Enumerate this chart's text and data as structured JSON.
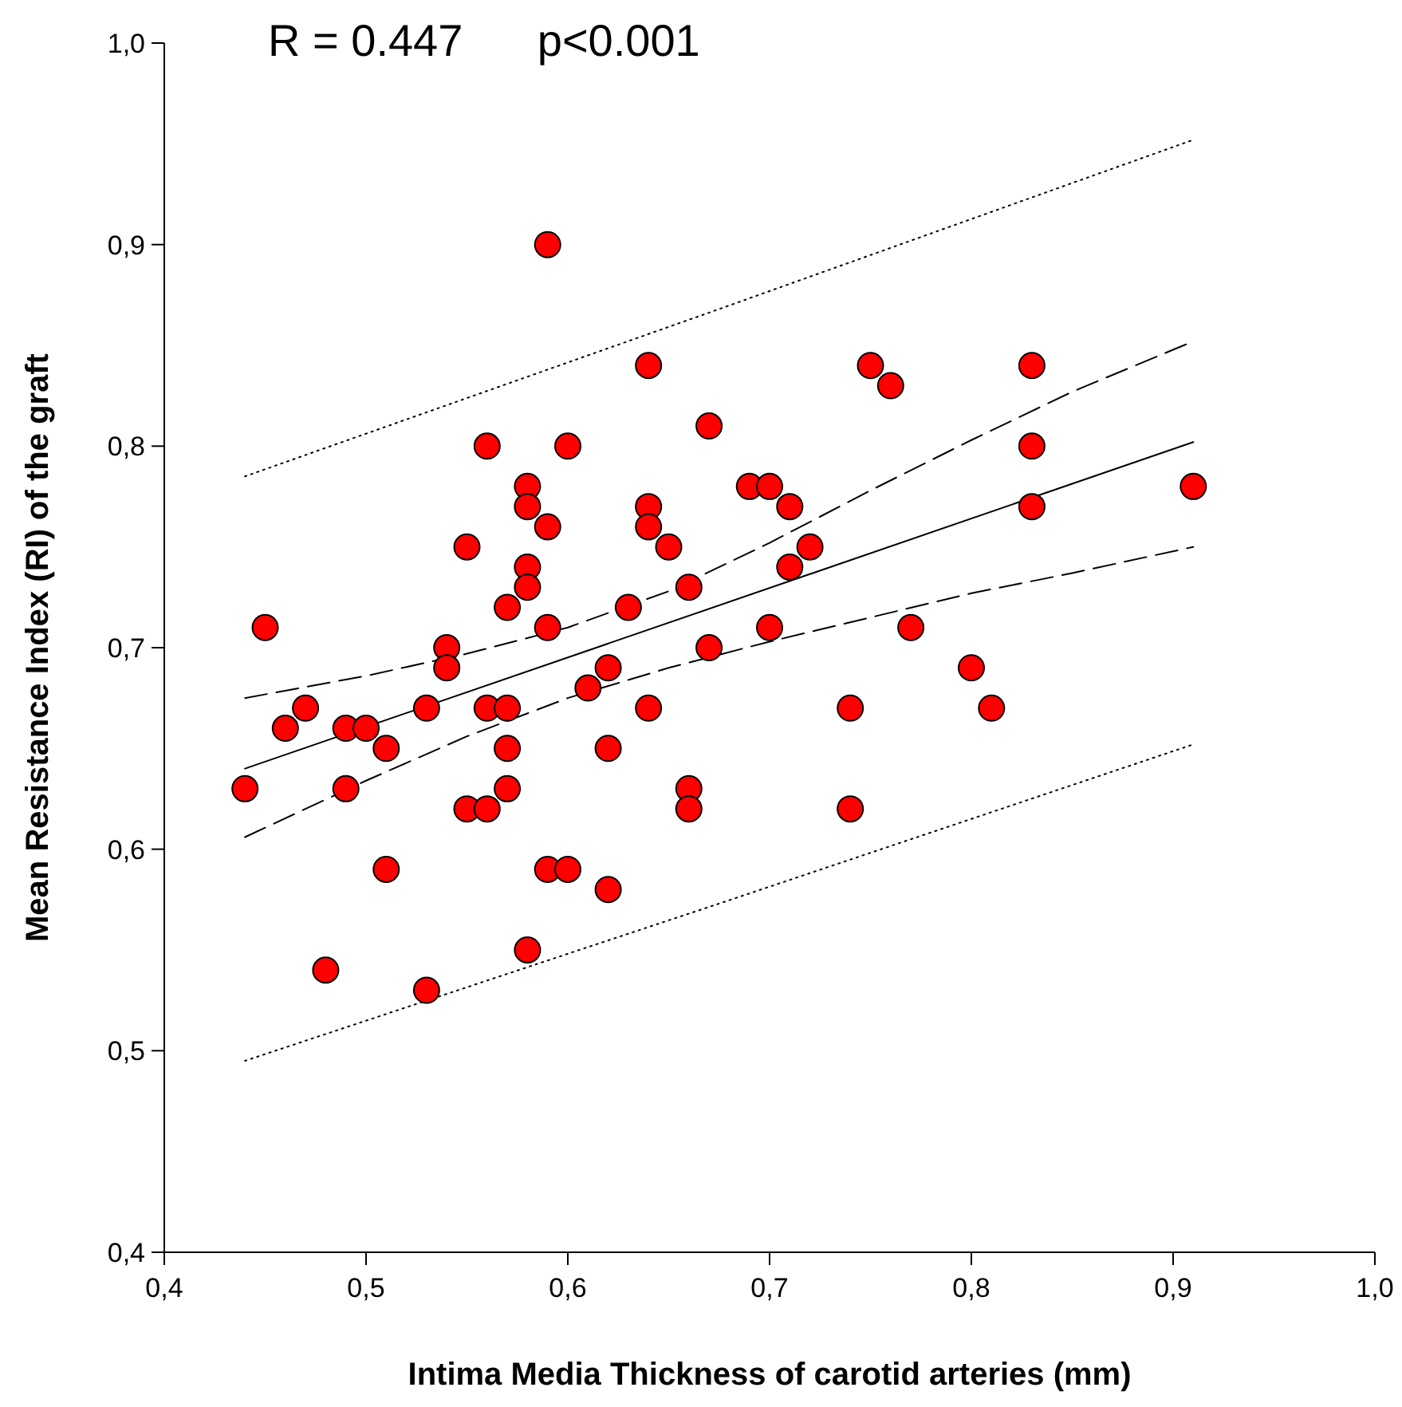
{
  "chart_data": {
    "type": "scatter",
    "xlabel": "Intima Media Thickness of carotid arteries (mm)",
    "ylabel": "Mean Resistance Index (RI) of the graft",
    "annotations": [
      "R = 0.447      p<0.001"
    ],
    "xlim": [
      0.4,
      1.0
    ],
    "ylim": [
      0.4,
      1.0
    ],
    "xticks": [
      {
        "value": 0.4,
        "label": "0,4"
      },
      {
        "value": 0.5,
        "label": "0,5"
      },
      {
        "value": 0.6,
        "label": "0,6"
      },
      {
        "value": 0.7,
        "label": "0,7"
      },
      {
        "value": 0.8,
        "label": "0,8"
      },
      {
        "value": 0.9,
        "label": "0,9"
      },
      {
        "value": 1.0,
        "label": "1,0"
      }
    ],
    "yticks": [
      {
        "value": 0.4,
        "label": "0,4"
      },
      {
        "value": 0.5,
        "label": "0,5"
      },
      {
        "value": 0.6,
        "label": "0,6"
      },
      {
        "value": 0.7,
        "label": "0,7"
      },
      {
        "value": 0.8,
        "label": "0,8"
      },
      {
        "value": 0.9,
        "label": "0,9"
      },
      {
        "value": 1.0,
        "label": "1,0"
      }
    ],
    "grid": false,
    "series": [
      {
        "type": "line",
        "color": "#000000",
        "line_style": "dotted",
        "x": [
          0.44,
          0.675,
          0.91
        ],
        "values": [
          0.785,
          0.868,
          0.952
        ]
      },
      {
        "type": "line",
        "color": "#000000",
        "line_style": "dotted",
        "x": [
          0.44,
          0.675,
          0.91
        ],
        "values": [
          0.495,
          0.573,
          0.652
        ]
      },
      {
        "type": "line",
        "color": "#000000",
        "line_style": "dashed",
        "x": [
          0.44,
          0.5,
          0.55,
          0.6,
          0.65,
          0.7,
          0.75,
          0.8,
          0.85,
          0.91
        ],
        "values": [
          0.675,
          0.686,
          0.697,
          0.71,
          0.728,
          0.752,
          0.778,
          0.803,
          0.827,
          0.852
        ]
      },
      {
        "type": "line",
        "color": "#000000",
        "line_style": "dashed",
        "x": [
          0.44,
          0.5,
          0.55,
          0.6,
          0.65,
          0.7,
          0.75,
          0.8,
          0.85,
          0.91
        ],
        "values": [
          0.606,
          0.634,
          0.656,
          0.675,
          0.69,
          0.703,
          0.715,
          0.727,
          0.737,
          0.75
        ]
      },
      {
        "type": "line",
        "color": "#000000",
        "line_style": "solid",
        "x": [
          0.44,
          0.91
        ],
        "values": [
          0.64,
          0.802
        ]
      },
      {
        "color": "#ff0000",
        "marker": "circle",
        "x": [
          0.44,
          0.45,
          0.46,
          0.47,
          0.48,
          0.49,
          0.49,
          0.5,
          0.51,
          0.51,
          0.53,
          0.53,
          0.54,
          0.54,
          0.55,
          0.55,
          0.56,
          0.56,
          0.56,
          0.57,
          0.57,
          0.57,
          0.57,
          0.58,
          0.58,
          0.58,
          0.58,
          0.58,
          0.59,
          0.59,
          0.59,
          0.59,
          0.6,
          0.6,
          0.61,
          0.62,
          0.62,
          0.62,
          0.63,
          0.64,
          0.64,
          0.64,
          0.64,
          0.65,
          0.66,
          0.66,
          0.66,
          0.67,
          0.67,
          0.69,
          0.7,
          0.7,
          0.71,
          0.71,
          0.72,
          0.74,
          0.74,
          0.75,
          0.76,
          0.77,
          0.8,
          0.81,
          0.83,
          0.83,
          0.83,
          0.91
        ],
        "values": [
          0.63,
          0.71,
          0.66,
          0.67,
          0.54,
          0.66,
          0.63,
          0.66,
          0.65,
          0.59,
          0.67,
          0.53,
          0.7,
          0.69,
          0.75,
          0.62,
          0.8,
          0.67,
          0.62,
          0.72,
          0.67,
          0.65,
          0.63,
          0.78,
          0.77,
          0.74,
          0.73,
          0.55,
          0.9,
          0.76,
          0.71,
          0.59,
          0.8,
          0.59,
          0.68,
          0.69,
          0.65,
          0.58,
          0.72,
          0.84,
          0.77,
          0.76,
          0.67,
          0.75,
          0.73,
          0.63,
          0.62,
          0.81,
          0.7,
          0.78,
          0.78,
          0.71,
          0.77,
          0.74,
          0.75,
          0.67,
          0.62,
          0.84,
          0.83,
          0.71,
          0.69,
          0.67,
          0.84,
          0.8,
          0.77,
          0.78
        ]
      }
    ]
  }
}
